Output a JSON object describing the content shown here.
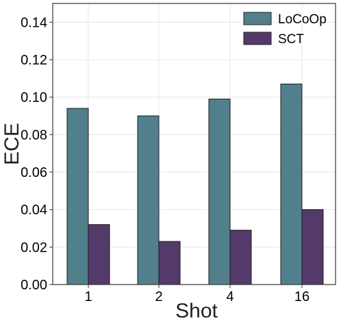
{
  "chart_data": {
    "type": "bar",
    "categories": [
      "1",
      "2",
      "4",
      "16"
    ],
    "series": [
      {
        "name": "LoCoOp",
        "values": [
          0.094,
          0.09,
          0.099,
          0.107
        ],
        "color": "#527f8c"
      },
      {
        "name": "SCT",
        "values": [
          0.032,
          0.023,
          0.029,
          0.04
        ],
        "color": "#543a6a"
      }
    ],
    "xlabel": "Shot",
    "ylabel": "ECE",
    "ylim": [
      0,
      0.15
    ],
    "yticks": [
      "0.00",
      "0.02",
      "0.04",
      "0.06",
      "0.08",
      "0.10",
      "0.12",
      "0.14"
    ],
    "grid": true,
    "legend_position": "top-right"
  }
}
